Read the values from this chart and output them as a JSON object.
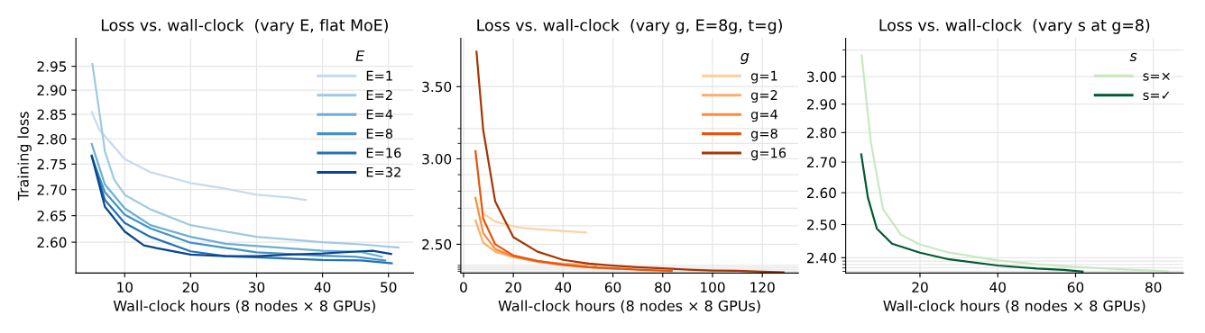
{
  "chart_data": [
    {
      "type": "line",
      "title": "Loss vs. wall-clock  (vary E, flat MoE)",
      "xlabel": "Wall-clock hours (8 nodes × 8 GPUs)",
      "ylabel": "Training loss",
      "legend_title": "E",
      "log": "y",
      "grid": true,
      "legend": "top right",
      "marker": "none",
      "line_style": "solid",
      "xlim": [
        2.6,
        53.8
      ],
      "xticks": [
        10,
        20,
        30,
        40,
        50
      ],
      "ylim": [
        2.543,
        3.01
      ],
      "yticks": [
        {
          "value": 2.6,
          "label": "2.60"
        },
        {
          "value": 2.65,
          "label": "2.65"
        },
        {
          "value": 2.7,
          "label": "2.70"
        },
        {
          "value": 2.75,
          "label": "2.75"
        },
        {
          "value": 2.8,
          "label": "2.80"
        },
        {
          "value": 2.85,
          "label": "2.85"
        },
        {
          "value": 2.9,
          "label": "2.90"
        },
        {
          "value": 2.95,
          "label": "2.95"
        }
      ],
      "series": [
        {
          "name": "E=1",
          "color": "#c6dbef",
          "x": [
            5.0,
            6.1,
            10,
            13.9,
            20,
            25.3,
            30,
            34.9,
            37.5
          ],
          "values": [
            2.855,
            2.82,
            2.76,
            2.734,
            2.713,
            2.702,
            2.69,
            2.685,
            2.68
          ]
        },
        {
          "name": "E=2",
          "color": "#9ecae1",
          "x": [
            5.1,
            6.1,
            7.0,
            8.4,
            10,
            13.9,
            20,
            25.3,
            30,
            40,
            45.8,
            51.5
          ],
          "values": [
            2.955,
            2.86,
            2.775,
            2.72,
            2.69,
            2.662,
            2.632,
            2.62,
            2.61,
            2.6,
            2.596,
            2.59
          ]
        },
        {
          "name": "E=4",
          "color": "#6baed6",
          "x": [
            5.0,
            7.0,
            10,
            13.9,
            20,
            25.3,
            30,
            40,
            45.8,
            49
          ],
          "values": [
            2.79,
            2.71,
            2.664,
            2.632,
            2.61,
            2.597,
            2.593,
            2.584,
            2.582,
            2.573
          ]
        },
        {
          "name": "E=8",
          "color": "#4292c6",
          "x": [
            5.0,
            7,
            10,
            13.9,
            20,
            30,
            40,
            45,
            49.5
          ],
          "values": [
            2.765,
            2.695,
            2.652,
            2.626,
            2.599,
            2.581,
            2.575,
            2.573,
            2.566
          ]
        },
        {
          "name": "E=16",
          "color": "#2171b5",
          "x": [
            5.0,
            7,
            10,
            13.9,
            20,
            25.3,
            30,
            40,
            45.8,
            50.5
          ],
          "values": [
            2.767,
            2.68,
            2.636,
            2.61,
            2.583,
            2.574,
            2.572,
            2.567,
            2.566,
            2.561
          ]
        },
        {
          "name": "E=32",
          "color": "#08458f",
          "x": [
            5.0,
            7,
            10,
            12.9,
            14.8,
            20,
            25.3,
            30,
            34.9,
            40,
            45.8,
            47.6,
            50.4
          ],
          "values": [
            2.766,
            2.667,
            2.62,
            2.594,
            2.589,
            2.577,
            2.574,
            2.574,
            2.577,
            2.579,
            2.583,
            2.584,
            2.578
          ]
        }
      ]
    },
    {
      "type": "line",
      "title": "Loss vs. wall-clock  (vary g, E=8g, t=g)",
      "xlabel": "Wall-clock hours (8 nodes × 8 GPUs)",
      "legend_title": "g",
      "log": "y",
      "grid": true,
      "legend": "top right",
      "marker": "none",
      "line_style": "solid",
      "xlim": [
        -1.1,
        134.5
      ],
      "xticks": [
        0,
        20,
        40,
        60,
        80,
        100,
        120
      ],
      "ylim": [
        2.351,
        3.88
      ],
      "yticks": [
        {
          "value": 2.36,
          "label": null
        },
        {
          "value": 2.37,
          "label": null
        },
        {
          "value": 2.38,
          "label": null
        },
        {
          "value": 2.39,
          "label": null
        },
        {
          "value": 2.5,
          "label": "2.50"
        },
        {
          "value": 2.6,
          "label": null
        },
        {
          "value": 2.7,
          "label": null
        },
        {
          "value": 2.8,
          "label": null
        },
        {
          "value": 2.9,
          "label": null
        },
        {
          "value": 3.0,
          "label": "3.00"
        },
        {
          "value": 3.1,
          "label": null
        },
        {
          "value": 3.2,
          "label": null
        },
        {
          "value": 3.5,
          "label": "3.50"
        }
      ],
      "series": [
        {
          "name": "g=1",
          "color": "#fdd0a2",
          "x": [
            7.9,
            12.7,
            22.4,
            33.3,
            49.1
          ],
          "values": [
            2.67,
            2.624,
            2.59,
            2.578,
            2.564
          ]
        },
        {
          "name": "g=2",
          "color": "#fdae6b",
          "x": [
            4.8,
            7.9,
            12.7,
            20,
            29.7,
            40,
            47.9,
            53.3
          ],
          "values": [
            2.63,
            2.509,
            2.461,
            2.432,
            2.411,
            2.399,
            2.395,
            2.389
          ]
        },
        {
          "name": "g=4",
          "color": "#fd8d3c",
          "x": [
            4.8,
            7.9,
            12.7,
            20,
            29.7,
            40,
            50.3,
            62.4
          ],
          "values": [
            2.76,
            2.56,
            2.475,
            2.435,
            2.408,
            2.392,
            2.381,
            2.372
          ]
        },
        {
          "name": "g=8",
          "color": "#e6550d",
          "x": [
            4.8,
            7.9,
            12.7,
            20,
            29.7,
            40,
            50.3,
            60,
            69.7,
            83.6
          ],
          "values": [
            3.05,
            2.64,
            2.5,
            2.441,
            2.413,
            2.393,
            2.381,
            2.3745,
            2.368,
            2.361
          ]
        },
        {
          "name": "g=16",
          "color": "#a63603",
          "x": [
            5.2,
            7.9,
            12.7,
            20,
            29.7,
            40,
            50.3,
            60,
            69.7,
            80,
            90.3,
            100,
            109.7,
            120,
            128.5
          ],
          "values": [
            3.77,
            3.19,
            2.74,
            2.538,
            2.461,
            2.418,
            2.399,
            2.389,
            2.381,
            2.3745,
            2.368,
            2.364,
            2.362,
            2.358,
            2.3545
          ]
        }
      ]
    },
    {
      "type": "line",
      "title": "Loss vs. wall-clock  (vary s at g=8)",
      "xlabel": "Wall-clock hours (8 nodes × 8 GPUs)",
      "legend_title": "s",
      "log": "y",
      "grid": true,
      "legend": "top right",
      "marker": "none",
      "line_style": "solid",
      "xlim": [
        0.9,
        87.7
      ],
      "xticks": [
        20,
        40,
        60,
        80
      ],
      "ylim": [
        2.355,
        3.145
      ],
      "yticks": [
        {
          "value": 2.36,
          "label": null
        },
        {
          "value": 2.37,
          "label": null
        },
        {
          "value": 2.38,
          "label": null
        },
        {
          "value": 2.39,
          "label": null
        },
        {
          "value": 2.4,
          "label": "2.40"
        },
        {
          "value": 2.5,
          "label": "2.50"
        },
        {
          "value": 2.6,
          "label": "2.60"
        },
        {
          "value": 2.7,
          "label": "2.70"
        },
        {
          "value": 2.8,
          "label": "2.80"
        },
        {
          "value": 2.9,
          "label": "2.90"
        },
        {
          "value": 3.0,
          "label": "3.00"
        },
        {
          "value": 3.1,
          "label": null
        }
      ],
      "series": [
        {
          "name": "s=×",
          "color": "#c7e9c0",
          "x": [
            5.0,
            7.4,
            10.5,
            15.1,
            20,
            27.5,
            40,
            50,
            60,
            70.2,
            80,
            83.7
          ],
          "values": [
            3.08,
            2.765,
            2.548,
            2.469,
            2.439,
            2.415,
            2.392,
            2.381,
            2.373,
            2.367,
            2.362,
            2.36
          ]
        },
        {
          "name": "s=✓",
          "color": "#005a32",
          "x": [
            4.9,
            6.6,
            8.9,
            12.8,
            20,
            27.5,
            40,
            50,
            57,
            61.8
          ],
          "values": [
            2.726,
            2.585,
            2.4875,
            2.442,
            2.415,
            2.395,
            2.377,
            2.368,
            2.364,
            2.359
          ]
        }
      ]
    }
  ]
}
